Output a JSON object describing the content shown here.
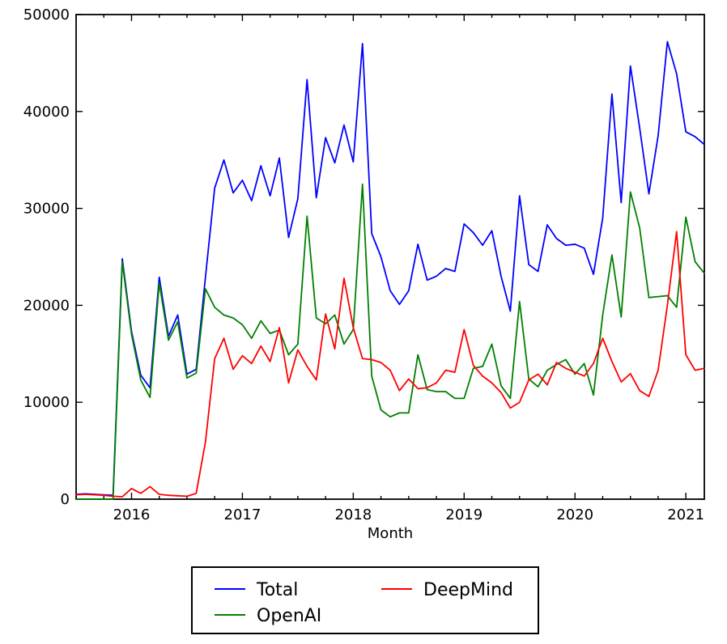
{
  "figure": {
    "background": "#ffffff",
    "axes_color": "#000000"
  },
  "legend": {
    "items": [
      {
        "label": "Total",
        "color": "#0000ff"
      },
      {
        "label": "OpenAI",
        "color": "#008000"
      },
      {
        "label": "DeepMind",
        "color": "#ff0000"
      }
    ]
  },
  "chart_data": {
    "type": "line",
    "title": "",
    "xlabel": "Month",
    "ylabel": "",
    "grid": false,
    "legend_position": "below-center",
    "ylim": [
      0,
      50000
    ],
    "y_ticks": [
      0,
      10000,
      20000,
      30000,
      40000,
      50000
    ],
    "y_tick_labels": [
      "0",
      "10000",
      "20000",
      "30000",
      "40000",
      "50000"
    ],
    "x_tick_labels": [
      "2016",
      "2017",
      "2018",
      "2019",
      "2020",
      "2021"
    ],
    "x_minor_tick_interval_months": 3,
    "x_range_months": [
      "2015-07",
      "2021-03"
    ],
    "months": [
      "2015-07",
      "2015-08",
      "2015-09",
      "2015-10",
      "2015-11",
      "2015-12",
      "2016-01",
      "2016-02",
      "2016-03",
      "2016-04",
      "2016-05",
      "2016-06",
      "2016-07",
      "2016-08",
      "2016-09",
      "2016-10",
      "2016-11",
      "2016-12",
      "2017-01",
      "2017-02",
      "2017-03",
      "2017-04",
      "2017-05",
      "2017-06",
      "2017-07",
      "2017-08",
      "2017-09",
      "2017-10",
      "2017-11",
      "2017-12",
      "2018-01",
      "2018-02",
      "2018-03",
      "2018-04",
      "2018-05",
      "2018-06",
      "2018-07",
      "2018-08",
      "2018-09",
      "2018-10",
      "2018-11",
      "2018-12",
      "2019-01",
      "2019-02",
      "2019-03",
      "2019-04",
      "2019-05",
      "2019-06",
      "2019-07",
      "2019-08",
      "2019-09",
      "2019-10",
      "2019-11",
      "2019-12",
      "2020-01",
      "2020-02",
      "2020-03",
      "2020-04",
      "2020-05",
      "2020-06",
      "2020-07",
      "2020-08",
      "2020-09",
      "2020-10",
      "2020-11",
      "2020-12",
      "2021-01",
      "2021-02",
      "2021-03"
    ],
    "series": [
      {
        "name": "Total",
        "color": "#0000ff",
        "values": [
          500,
          550,
          500,
          450,
          400,
          24800,
          17300,
          12800,
          11500,
          22900,
          16800,
          19000,
          12900,
          13400,
          22900,
          32100,
          35000,
          31600,
          32900,
          30800,
          34400,
          31300,
          35200,
          27000,
          31000,
          43300,
          31100,
          37300,
          34700,
          38600,
          34800,
          47000,
          27400,
          25000,
          21500,
          20100,
          21500,
          26300,
          22600,
          23000,
          23800,
          23500,
          28400,
          27500,
          26200,
          27700,
          23000,
          19400,
          31300,
          24200,
          23500,
          28300,
          26900,
          26200,
          26300,
          25900,
          23200,
          29000,
          41800,
          30600,
          44700,
          38300,
          31500,
          37500,
          47200,
          43900,
          37900,
          37400,
          36600
        ]
      },
      {
        "name": "OpenAI",
        "color": "#008000",
        "values": [
          0,
          0,
          0,
          0,
          0,
          24500,
          17000,
          12300,
          10500,
          22300,
          16400,
          18300,
          12500,
          13000,
          21700,
          19800,
          19000,
          18700,
          18000,
          16600,
          18400,
          17100,
          17450,
          14900,
          16000,
          29200,
          18700,
          18100,
          19000,
          16000,
          17500,
          32500,
          12700,
          9200,
          8500,
          8900,
          8900,
          14900,
          11300,
          11100,
          11100,
          10400,
          10400,
          13500,
          13700,
          16000,
          11700,
          10400,
          20400,
          12400,
          11600,
          13300,
          13900,
          14400,
          12900,
          14000,
          10750,
          19000,
          25200,
          18800,
          31700,
          28000,
          20800,
          20900,
          21000,
          19800,
          29100,
          24500,
          23300
        ]
      },
      {
        "name": "DeepMind",
        "color": "#ff0000",
        "values": [
          450,
          500,
          450,
          400,
          300,
          250,
          1100,
          600,
          1300,
          500,
          400,
          350,
          300,
          600,
          5900,
          14500,
          16600,
          13400,
          14800,
          14000,
          15800,
          14200,
          17700,
          12000,
          15400,
          13700,
          12300,
          19100,
          15500,
          22800,
          17700,
          14500,
          14400,
          14100,
          13300,
          11200,
          12400,
          11400,
          11500,
          12000,
          13300,
          13100,
          17500,
          13800,
          12700,
          12000,
          11000,
          9400,
          10000,
          12300,
          12900,
          11800,
          14100,
          13500,
          13100,
          12700,
          14000,
          16600,
          14200,
          12100,
          12950,
          11200,
          10600,
          13300,
          20000,
          27600,
          14900,
          13300,
          13500
        ]
      }
    ]
  }
}
